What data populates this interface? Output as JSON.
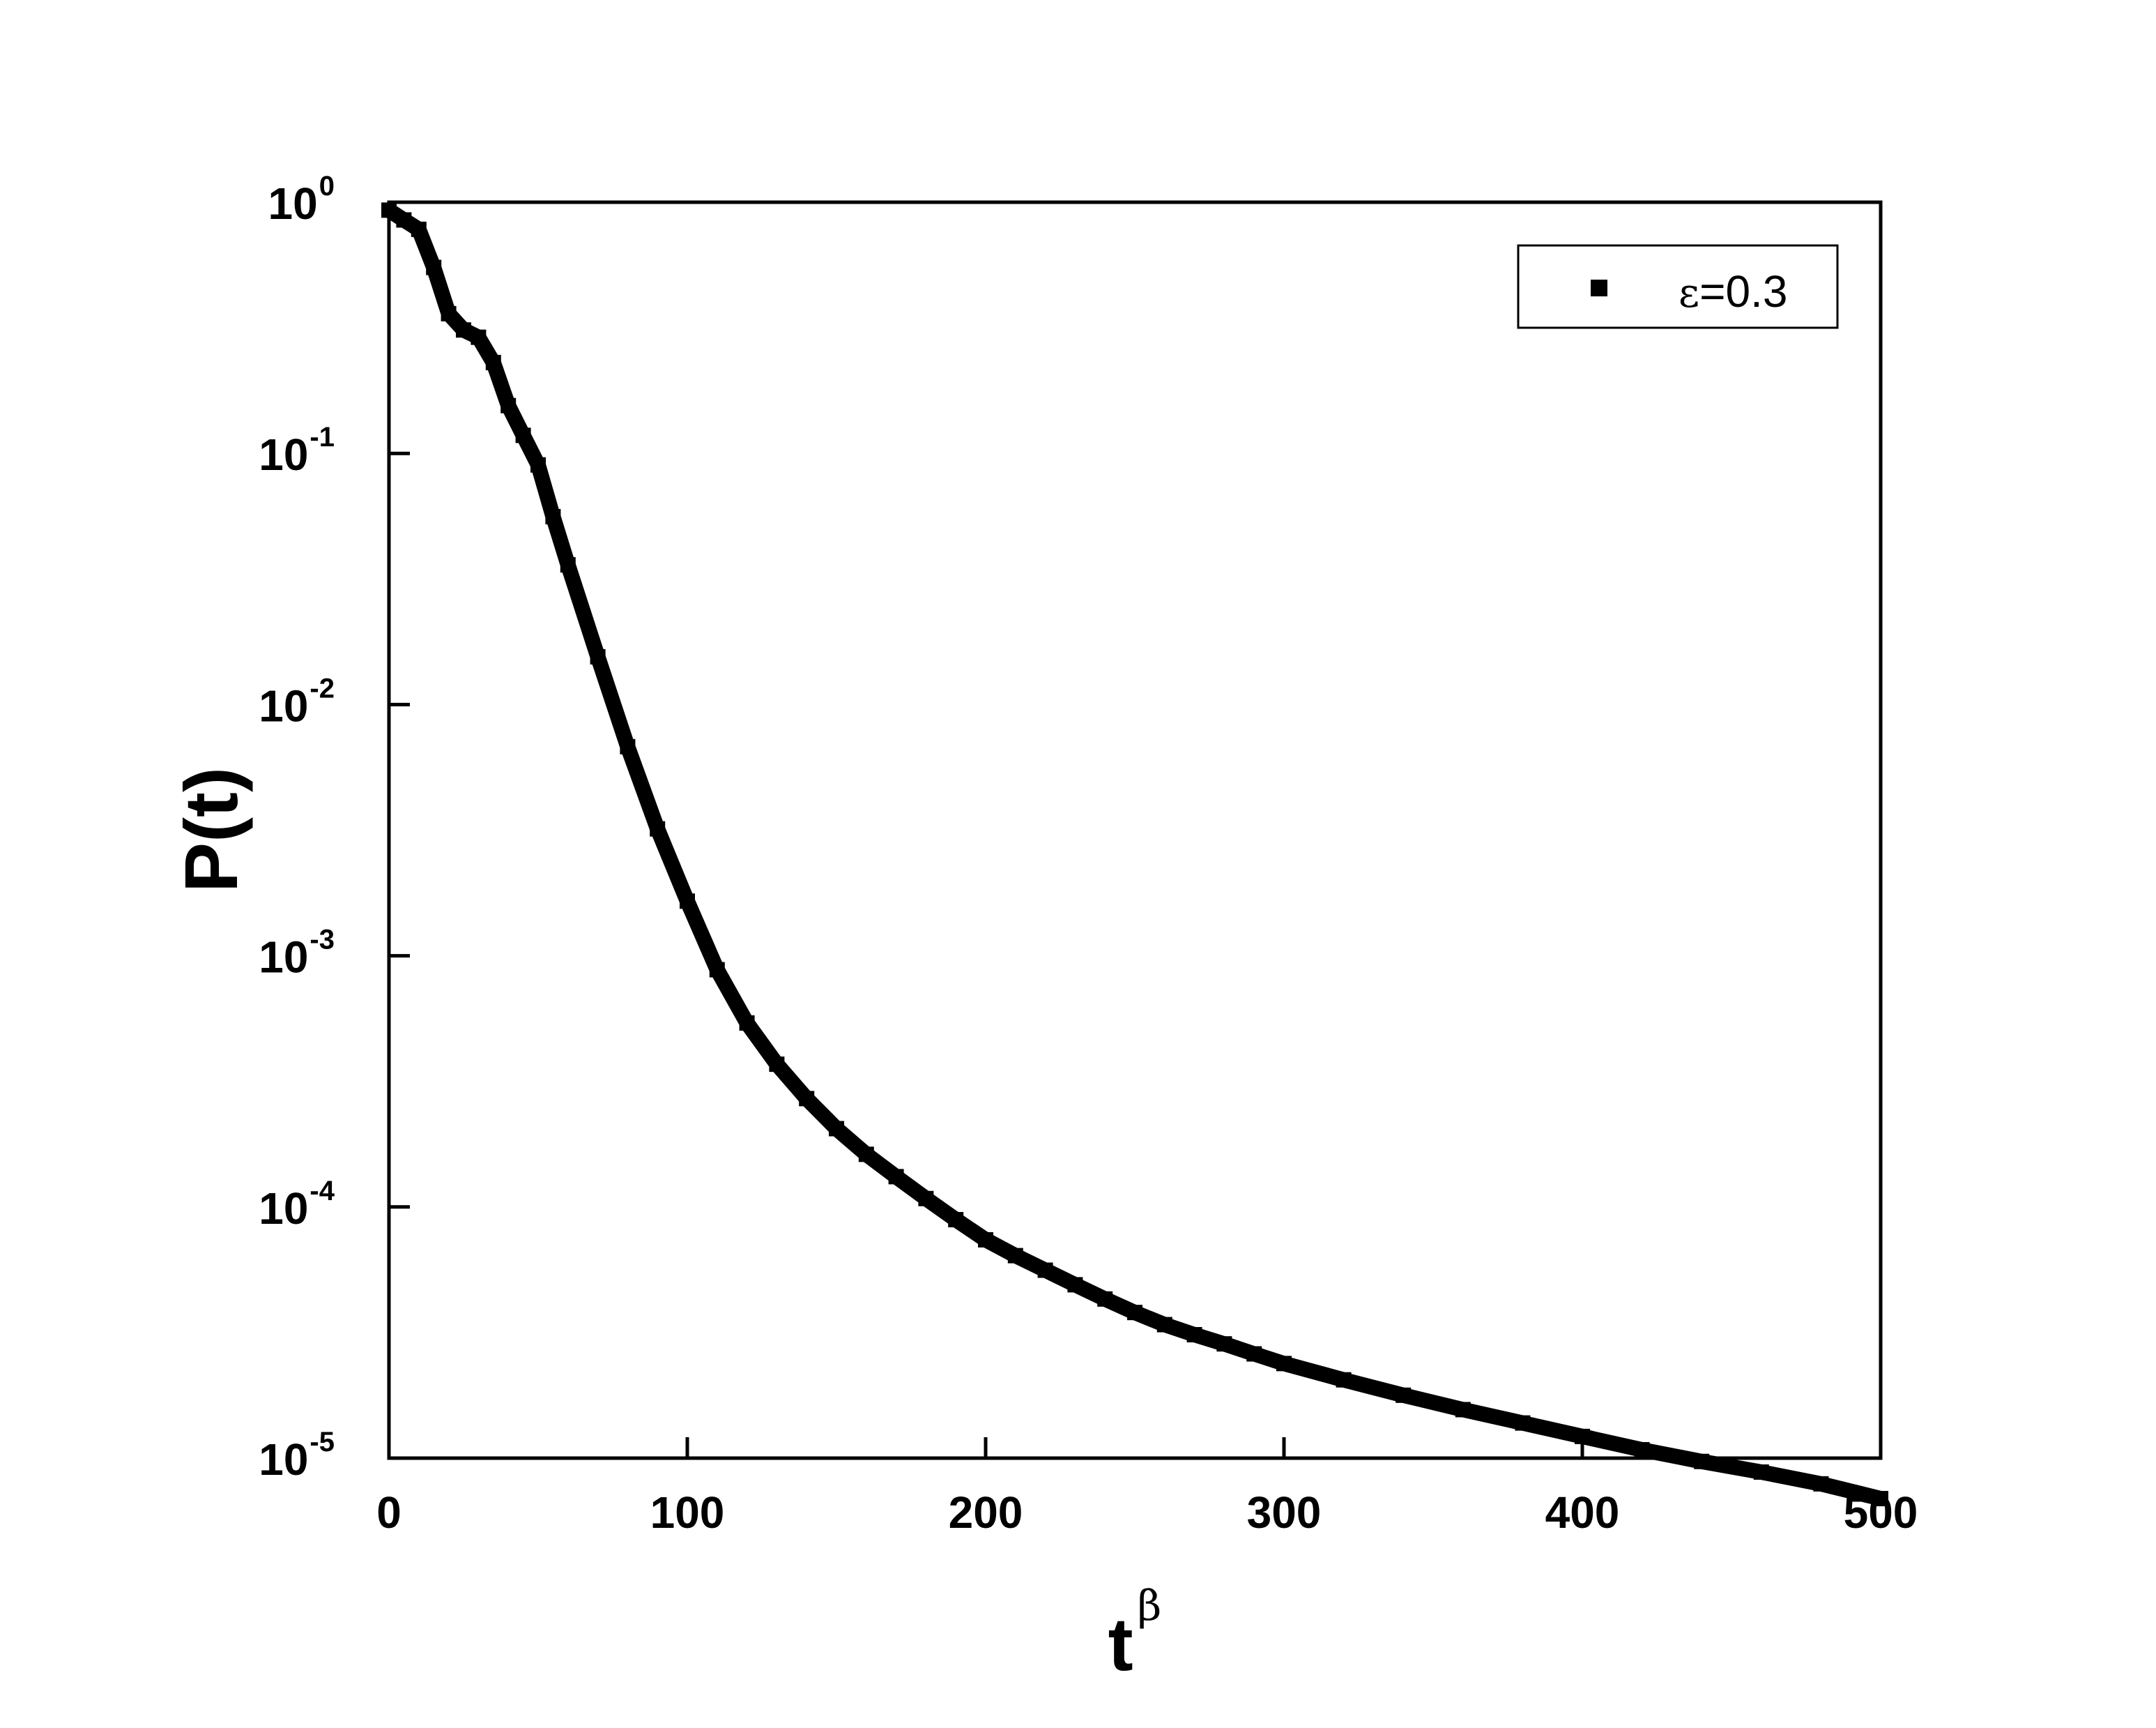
{
  "chart_data": {
    "type": "line",
    "title": "",
    "xlabel": "t",
    "xlabel_sup": "β",
    "ylabel": "P(t)",
    "xlim": [
      0,
      500
    ],
    "ylim": [
      1e-05,
      1
    ],
    "yscale": "log",
    "grid": false,
    "legend_position": "top-right",
    "x_ticks": [
      "0",
      "100",
      "200",
      "300",
      "400",
      "500"
    ],
    "y_ticks": [
      {
        "base": "10",
        "exp": "0",
        "value": 1
      },
      {
        "base": "10",
        "exp": "-1",
        "value": 0.1
      },
      {
        "base": "10",
        "exp": "-2",
        "value": 0.01
      },
      {
        "base": "10",
        "exp": "-3",
        "value": 0.001
      },
      {
        "base": "10",
        "exp": "-4",
        "value": 0.0001
      },
      {
        "base": "10",
        "exp": "-5",
        "value": 1e-05
      }
    ],
    "series": [
      {
        "name_symbol": "ε",
        "name_rest": "=0.3",
        "color": "#000000",
        "marker": "square",
        "x": [
          0,
          5,
          10,
          15,
          20,
          25,
          30,
          35,
          40,
          45,
          50,
          55,
          60,
          70,
          80,
          90,
          100,
          110,
          120,
          130,
          140,
          150,
          160,
          170,
          180,
          190,
          200,
          210,
          220,
          230,
          240,
          250,
          260,
          270,
          280,
          290,
          300,
          320,
          340,
          360,
          380,
          400,
          420,
          440,
          460,
          480,
          500
        ],
        "y": [
          0.93,
          0.85,
          0.78,
          0.55,
          0.36,
          0.31,
          0.29,
          0.23,
          0.155,
          0.118,
          0.09,
          0.056,
          0.036,
          0.0155,
          0.0068,
          0.0032,
          0.00165,
          0.00088,
          0.00054,
          0.00037,
          0.00027,
          0.000205,
          0.000162,
          0.000132,
          0.000108,
          8.9e-05,
          7.4e-05,
          6.4e-05,
          5.6e-05,
          4.9e-05,
          4.3e-05,
          3.8e-05,
          3.4e-05,
          3.1e-05,
          2.85e-05,
          2.6e-05,
          2.38e-05,
          2.05e-05,
          1.78e-05,
          1.56e-05,
          1.38e-05,
          1.22e-05,
          1.08e-05,
          9.7e-06,
          8.8e-06,
          7.9e-06,
          6.9e-06
        ]
      }
    ]
  }
}
